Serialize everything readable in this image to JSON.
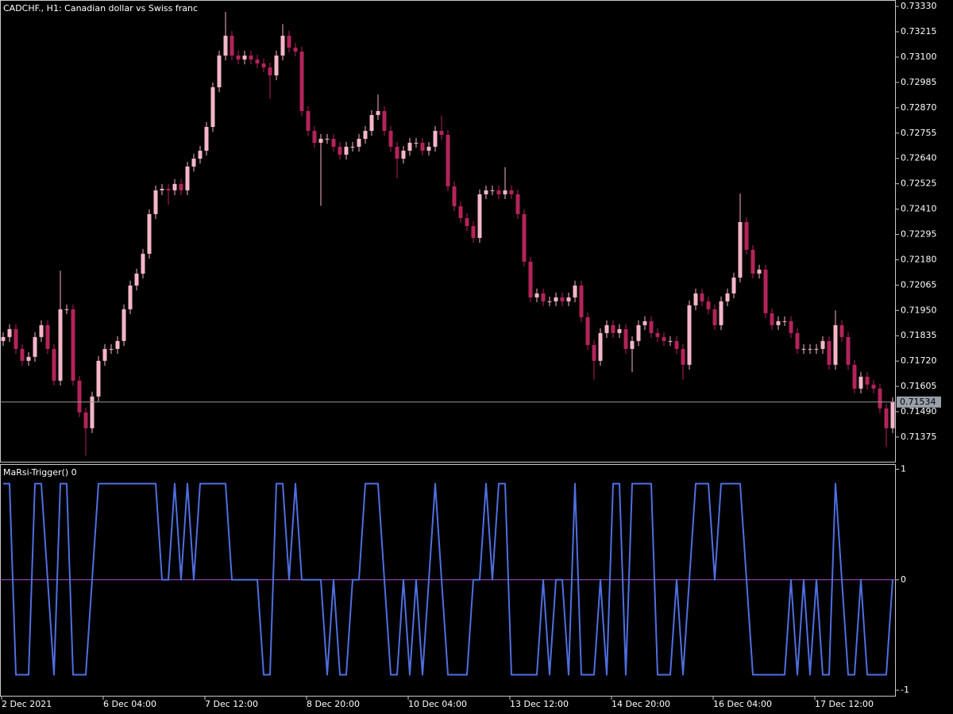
{
  "chart_data": [
    {
      "type": "candlestick",
      "title": "CADCHF., H1:  Canadian dollar vs Swiss franc",
      "up_color": "#f4b6c8",
      "down_color": "#b2245a",
      "open": [
        0.71811,
        0.71829,
        0.71865,
        0.71775,
        0.71721,
        0.71739,
        0.71829,
        0.71883,
        0.71775,
        0.71631,
        0.71955,
        0.71955,
        0.71631,
        0.71487,
        0.71415,
        0.71559,
        0.71721,
        0.71775,
        0.71775,
        0.71811,
        0.71955,
        0.72063,
        0.72117,
        0.72207,
        0.72387,
        0.72495,
        0.72502,
        0.72495,
        0.72524,
        0.72495,
        0.72603,
        0.72639,
        0.72675,
        0.72783,
        0.72963,
        0.73107,
        0.73197,
        0.73107,
        0.73089,
        0.73107,
        0.73089,
        0.73071,
        0.73053,
        0.73017,
        0.73107,
        0.73197,
        0.73143,
        0.73125,
        0.72855,
        0.72765,
        0.72711,
        0.72729,
        0.72729,
        0.72693,
        0.72657,
        0.72693,
        0.72693,
        0.72729,
        0.72765,
        0.72837,
        0.72855,
        0.72765,
        0.72693,
        0.72639,
        0.72675,
        0.72711,
        0.72711,
        0.72675,
        0.72693,
        0.72765,
        0.72747,
        0.72513,
        0.72423,
        0.72369,
        0.72333,
        0.72279,
        0.72477,
        0.72495,
        0.72495,
        0.72477,
        0.72495,
        0.72477,
        0.72387,
        0.72171,
        0.72009,
        0.72027,
        0.71991,
        0.71991,
        0.72009,
        0.71991,
        0.72009,
        0.72063,
        0.71919,
        0.71793,
        0.71721,
        0.71847,
        0.71883,
        0.71847,
        0.71865,
        0.71775,
        0.71811,
        0.71883,
        0.71901,
        0.71847,
        0.71829,
        0.71811,
        0.71811,
        0.71775,
        0.71703,
        0.71973,
        0.72027,
        0.71991,
        0.71955,
        0.71883,
        0.71991,
        0.72027,
        0.72099,
        0.72351,
        0.72225,
        0.72117,
        0.72135,
        0.71937,
        0.71883,
        0.71901,
        0.71901,
        0.71847,
        0.71775,
        0.71775,
        0.71775,
        0.71775,
        0.71811,
        0.71703,
        0.71883,
        0.71829,
        0.71703,
        0.71595,
        0.71649,
        0.71613,
        0.71595,
        0.71505,
        0.71415
      ],
      "high": [
        0.71851,
        0.71887,
        0.71887,
        0.71797,
        0.71761,
        0.71851,
        0.71905,
        0.71905,
        0.71797,
        0.7213,
        0.71977,
        0.71977,
        0.71653,
        0.71509,
        0.71581,
        0.71743,
        0.71797,
        0.71797,
        0.71833,
        0.71977,
        0.72085,
        0.72139,
        0.72229,
        0.72409,
        0.72517,
        0.72524,
        0.72524,
        0.72546,
        0.72546,
        0.72625,
        0.72661,
        0.72697,
        0.72805,
        0.72985,
        0.73129,
        0.73305,
        0.73219,
        0.73129,
        0.73129,
        0.73129,
        0.73111,
        0.73093,
        0.73075,
        0.73129,
        0.7325,
        0.73219,
        0.73165,
        0.73147,
        0.72877,
        0.72787,
        0.72751,
        0.72751,
        0.72751,
        0.72715,
        0.72715,
        0.72715,
        0.72751,
        0.72787,
        0.72859,
        0.7293,
        0.72877,
        0.72787,
        0.72715,
        0.72697,
        0.72733,
        0.72733,
        0.72733,
        0.72715,
        0.72787,
        0.72835,
        0.72769,
        0.72535,
        0.72445,
        0.72391,
        0.72355,
        0.72499,
        0.72517,
        0.72517,
        0.72517,
        0.726,
        0.72517,
        0.72499,
        0.72409,
        0.72193,
        0.72049,
        0.72049,
        0.72013,
        0.72031,
        0.72031,
        0.72031,
        0.72085,
        0.72085,
        0.71941,
        0.71815,
        0.71869,
        0.71905,
        0.71905,
        0.71887,
        0.71887,
        0.71833,
        0.71905,
        0.71923,
        0.71923,
        0.71869,
        0.71851,
        0.71833,
        0.71833,
        0.71797,
        0.71995,
        0.72049,
        0.72049,
        0.72013,
        0.71977,
        0.72013,
        0.72049,
        0.72121,
        0.7248,
        0.72373,
        0.72247,
        0.72157,
        0.72157,
        0.71959,
        0.71923,
        0.71923,
        0.71923,
        0.71869,
        0.71797,
        0.71797,
        0.71797,
        0.71833,
        0.71833,
        0.7195,
        0.71905,
        0.71851,
        0.71725,
        0.71671,
        0.71671,
        0.71635,
        0.71617,
        0.71527,
        0.71556
      ],
      "low": [
        0.71789,
        0.71807,
        0.71753,
        0.71699,
        0.71699,
        0.71717,
        0.71807,
        0.71753,
        0.71609,
        0.71609,
        0.71933,
        0.71609,
        0.71465,
        0.7129,
        0.71393,
        0.71537,
        0.71699,
        0.71753,
        0.71753,
        0.71789,
        0.71933,
        0.72041,
        0.72095,
        0.72185,
        0.72365,
        0.72473,
        0.7243,
        0.72473,
        0.72473,
        0.72473,
        0.72581,
        0.72617,
        0.72653,
        0.72761,
        0.72941,
        0.73085,
        0.73085,
        0.73067,
        0.73067,
        0.73067,
        0.73049,
        0.73031,
        0.7291,
        0.72995,
        0.73085,
        0.73121,
        0.73103,
        0.72833,
        0.72743,
        0.72689,
        0.72425,
        0.72707,
        0.72671,
        0.72635,
        0.72635,
        0.72671,
        0.72671,
        0.72707,
        0.72743,
        0.72815,
        0.72743,
        0.72671,
        0.7255,
        0.72617,
        0.72653,
        0.72689,
        0.72653,
        0.72653,
        0.72671,
        0.72725,
        0.72491,
        0.72401,
        0.72347,
        0.72311,
        0.72257,
        0.72257,
        0.72455,
        0.72473,
        0.72455,
        0.72455,
        0.72455,
        0.72365,
        0.72149,
        0.71987,
        0.71987,
        0.71969,
        0.71969,
        0.71969,
        0.71969,
        0.71969,
        0.71987,
        0.71897,
        0.71771,
        0.71635,
        0.71699,
        0.71825,
        0.71825,
        0.71825,
        0.71753,
        0.7167,
        0.71789,
        0.71861,
        0.71825,
        0.71807,
        0.71789,
        0.71789,
        0.71753,
        0.71635,
        0.71681,
        0.71951,
        0.71969,
        0.71933,
        0.71861,
        0.71861,
        0.71969,
        0.72005,
        0.72077,
        0.72203,
        0.72095,
        0.72095,
        0.71915,
        0.71861,
        0.71861,
        0.71879,
        0.71825,
        0.71753,
        0.71753,
        0.71753,
        0.71753,
        0.71753,
        0.71681,
        0.71681,
        0.71807,
        0.71681,
        0.71573,
        0.71573,
        0.71591,
        0.71573,
        0.71483,
        0.7133,
        0.71393
      ],
      "close": [
        0.71829,
        0.71865,
        0.71775,
        0.71721,
        0.71739,
        0.71829,
        0.71883,
        0.71775,
        0.71631,
        0.71955,
        0.71955,
        0.71631,
        0.71487,
        0.71415,
        0.71559,
        0.71721,
        0.71775,
        0.71775,
        0.71811,
        0.71955,
        0.72063,
        0.72117,
        0.72207,
        0.72387,
        0.72495,
        0.72502,
        0.72495,
        0.72524,
        0.72495,
        0.72603,
        0.72639,
        0.72675,
        0.72783,
        0.72963,
        0.73107,
        0.73197,
        0.73107,
        0.73089,
        0.73107,
        0.73089,
        0.73071,
        0.73053,
        0.73017,
        0.73107,
        0.73197,
        0.73143,
        0.73125,
        0.72855,
        0.72765,
        0.72711,
        0.72729,
        0.72729,
        0.72693,
        0.72657,
        0.72693,
        0.72693,
        0.72729,
        0.72765,
        0.72837,
        0.72855,
        0.72765,
        0.72693,
        0.72639,
        0.72675,
        0.72711,
        0.72711,
        0.72675,
        0.72693,
        0.72765,
        0.72747,
        0.72513,
        0.72423,
        0.72369,
        0.72333,
        0.72279,
        0.72477,
        0.72495,
        0.72495,
        0.72477,
        0.72495,
        0.72477,
        0.72387,
        0.72171,
        0.72009,
        0.72027,
        0.71991,
        0.71991,
        0.72009,
        0.71991,
        0.72009,
        0.72063,
        0.71919,
        0.71793,
        0.71721,
        0.71847,
        0.71883,
        0.71847,
        0.71865,
        0.71775,
        0.71811,
        0.71883,
        0.71901,
        0.71847,
        0.71829,
        0.71811,
        0.71811,
        0.71775,
        0.71703,
        0.71973,
        0.72027,
        0.71991,
        0.71955,
        0.71883,
        0.71991,
        0.72027,
        0.72099,
        0.72351,
        0.72225,
        0.72117,
        0.72135,
        0.71937,
        0.71883,
        0.71901,
        0.71901,
        0.71847,
        0.71775,
        0.71775,
        0.71775,
        0.71775,
        0.71811,
        0.71703,
        0.71883,
        0.71829,
        0.71703,
        0.71595,
        0.71649,
        0.71613,
        0.71595,
        0.71505,
        0.71415,
        0.71534
      ],
      "last_price": 0.71534,
      "ylim": [
        0.71263,
        0.73352
      ],
      "yticks": [
        {
          "value": 0.7333,
          "label": "0.73330"
        },
        0.73215,
        {
          "value": 0.731,
          "label": "0.73100"
        },
        0.72985,
        {
          "value": 0.7287,
          "label": "0.72870"
        },
        0.72755,
        {
          "value": 0.7264,
          "label": "0.72640"
        },
        0.72525,
        {
          "value": 0.7241,
          "label": "0.72410"
        },
        0.72295,
        {
          "value": 0.7218,
          "label": "0.72180"
        },
        0.72065,
        {
          "value": 0.7195,
          "label": "0.71950"
        },
        0.71835,
        {
          "value": 0.7172,
          "label": "0.71720"
        },
        0.71605,
        {
          "value": 0.7149,
          "label": "0.71490"
        },
        0.71375
      ],
      "xticks": [
        {
          "value": 0,
          "label": "2 Dec 2021"
        },
        {
          "value": 16,
          "label": "6 Dec 04:00"
        },
        {
          "value": 32,
          "label": "7 Dec 12:00"
        },
        {
          "value": 48,
          "label": "8 Dec 20:00"
        },
        {
          "value": 64,
          "label": "10 Dec 04:00"
        },
        {
          "value": 80,
          "label": "13 Dec 12:00"
        },
        {
          "value": 96,
          "label": "14 Dec 20:00"
        },
        {
          "value": 112,
          "label": "16 Dec 04:00"
        },
        {
          "value": 128,
          "label": "17 Dec 12:00"
        }
      ]
    },
    {
      "type": "line",
      "title": "MaRsi-Trigger() 0",
      "series": [
        {
          "color": "#4f6fe0",
          "values": [
            0.87,
            0.87,
            -0.86,
            -0.86,
            -0.86,
            0.87,
            0.87,
            0,
            -0.86,
            0.87,
            0.87,
            -0.86,
            -0.86,
            -0.86,
            0,
            0.87,
            0.87,
            0.87,
            0.87,
            0.87,
            0.87,
            0.87,
            0.87,
            0.87,
            0.87,
            0,
            0,
            0.87,
            0,
            0.87,
            0,
            0.87,
            0.87,
            0.87,
            0.87,
            0.87,
            0,
            0,
            0,
            0,
            0,
            -0.86,
            -0.86,
            0.87,
            0.87,
            0,
            0.87,
            0,
            0,
            0,
            0,
            -0.86,
            0,
            -0.86,
            -0.86,
            0,
            0,
            0.87,
            0.87,
            0.87,
            0,
            -0.86,
            -0.86,
            0,
            -0.86,
            0,
            -0.86,
            0,
            0.87,
            0,
            -0.86,
            -0.86,
            -0.86,
            -0.86,
            0,
            0,
            0.87,
            0,
            0.87,
            0.87,
            -0.86,
            -0.86,
            -0.86,
            -0.86,
            -0.86,
            0,
            -0.86,
            0,
            0,
            -0.86,
            0.87,
            -0.86,
            -0.86,
            -0.86,
            0,
            -0.86,
            0.87,
            0.87,
            -0.86,
            0.87,
            0.87,
            0.87,
            0.87,
            -0.86,
            -0.86,
            -0.86,
            0,
            -0.86,
            0,
            0.87,
            0.87,
            0.87,
            0,
            0.87,
            0.87,
            0.87,
            0.87,
            0,
            -0.86,
            -0.86,
            -0.86,
            -0.86,
            -0.86,
            -0.86,
            0,
            -0.86,
            0,
            -0.86,
            0,
            -0.86,
            -0.86,
            0.87,
            0,
            -0.86,
            -0.86,
            0,
            -0.86,
            -0.86,
            -0.86,
            -0.86,
            0
          ]
        }
      ],
      "levels": [
        0
      ],
      "level_color": "#b04fd0",
      "ylim": [
        -1.05,
        1.04
      ],
      "yticks": [
        1,
        0,
        -1
      ]
    }
  ]
}
